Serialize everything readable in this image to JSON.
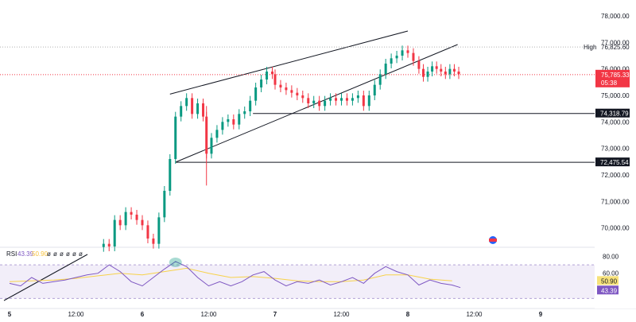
{
  "chart_data": [
    {
      "type": "candlestick",
      "price_axis": {
        "ticks": [
          "78,000.00",
          "77,000.00",
          "76,000.00",
          "75,000.00",
          "74,000.00",
          "73,000.00",
          "72,000.00",
          "71,000.00",
          "70,000.00"
        ],
        "range": [
          69300,
          78600
        ]
      },
      "time_axis": {
        "ticks": [
          "5",
          "12:00",
          "6",
          "12:00",
          "7",
          "12:00",
          "8",
          "12:00",
          "9"
        ],
        "range_hours": [
          0,
          96
        ]
      },
      "high": {
        "label": "High",
        "value": 76825.6,
        "text": "76,825.60"
      },
      "last_price": {
        "value": 75785.33,
        "text": "75,785.33",
        "countdown": "05:38"
      },
      "levels": [
        {
          "value": 74318.79,
          "text": "74,318.79"
        },
        {
          "value": 72475.54,
          "text": "72,475.54"
        }
      ],
      "wedge_upper": [
        [
          29,
          75050
        ],
        [
          72,
          77430
        ]
      ],
      "wedge_lower": [
        [
          30,
          72480
        ],
        [
          81,
          76920
        ]
      ],
      "colors": {
        "up": "#089981",
        "down": "#f23645",
        "last_price": "#f23645",
        "line": "#000000"
      },
      "candles_approx": [
        [
          17.0,
          69400
        ],
        [
          18.0,
          69300
        ],
        [
          19.0,
          70300
        ],
        [
          20.0,
          70100
        ],
        [
          21.0,
          70600
        ],
        [
          22.0,
          70500
        ],
        [
          23.0,
          70300
        ],
        [
          24.0,
          70100
        ],
        [
          25.0,
          69600
        ],
        [
          26.0,
          69400
        ],
        [
          27.0,
          70400
        ],
        [
          28.0,
          71400
        ],
        [
          29.0,
          72600
        ],
        [
          30.0,
          74200
        ],
        [
          31.0,
          74600
        ],
        [
          32.0,
          74900
        ],
        [
          33.0,
          74300
        ],
        [
          34.0,
          74700
        ],
        [
          35.0,
          74200
        ],
        [
          35.6,
          72800
        ],
        [
          36.5,
          73400
        ],
        [
          37.5,
          73700
        ],
        [
          38.5,
          74000
        ],
        [
          39.5,
          74100
        ],
        [
          40.5,
          73900
        ],
        [
          41.5,
          74300
        ],
        [
          42.5,
          74400
        ],
        [
          43.5,
          74800
        ],
        [
          44.5,
          75300
        ],
        [
          45.5,
          75600
        ],
        [
          46.5,
          75900
        ],
        [
          47.5,
          75800
        ],
        [
          48.0,
          75400
        ],
        [
          49.0,
          75300
        ],
        [
          50.0,
          75200
        ],
        [
          51.0,
          75100
        ],
        [
          52.0,
          75000
        ],
        [
          53.0,
          74900
        ],
        [
          54.0,
          74700
        ],
        [
          55.0,
          74800
        ],
        [
          56.0,
          74600
        ],
        [
          57.0,
          74800
        ],
        [
          58.0,
          74900
        ],
        [
          59.0,
          74800
        ],
        [
          60.0,
          74900
        ],
        [
          61.0,
          74800
        ],
        [
          62.0,
          74900
        ],
        [
          63.0,
          75000
        ],
        [
          64.0,
          74600
        ],
        [
          65.0,
          75000
        ],
        [
          66.0,
          75400
        ],
        [
          67.0,
          75800
        ],
        [
          68.0,
          76200
        ],
        [
          69.0,
          76400
        ],
        [
          70.0,
          76500
        ],
        [
          71.0,
          76700
        ],
        [
          72.0,
          76600
        ],
        [
          73.0,
          76300
        ],
        [
          74.0,
          76000
        ],
        [
          74.8,
          75700
        ],
        [
          75.6,
          75900
        ],
        [
          76.4,
          76100
        ],
        [
          77.2,
          76000
        ],
        [
          78.0,
          75900
        ],
        [
          78.8,
          75800
        ],
        [
          79.6,
          76000
        ],
        [
          80.4,
          75900
        ],
        [
          81.2,
          75800
        ]
      ]
    },
    {
      "type": "line",
      "indicator": "RSI",
      "label": "RSI",
      "values_text": [
        "43.39",
        "50.90"
      ],
      "flags": [
        "ø",
        "ø",
        "ø",
        "ø",
        "ø",
        "ø"
      ],
      "axis_ticks": [
        "80.00",
        "60.00",
        "40.00"
      ],
      "range": [
        20,
        90
      ],
      "band": [
        30,
        70
      ],
      "series": [
        {
          "value": 43.39,
          "text": "43.39",
          "color": "#7e57c2"
        },
        {
          "value": 50.9,
          "text": "50.90",
          "color": "#f7d24a"
        }
      ],
      "rsi_approx": [
        [
          0,
          48
        ],
        [
          2,
          45
        ],
        [
          4,
          55
        ],
        [
          6,
          48
        ],
        [
          8,
          50
        ],
        [
          10,
          52
        ],
        [
          12,
          55
        ],
        [
          14,
          58
        ],
        [
          16,
          60
        ],
        [
          18,
          70
        ],
        [
          20,
          62
        ],
        [
          22,
          50
        ],
        [
          24,
          45
        ],
        [
          26,
          55
        ],
        [
          28,
          65
        ],
        [
          30,
          74
        ],
        [
          32,
          68
        ],
        [
          34,
          55
        ],
        [
          36,
          45
        ],
        [
          38,
          50
        ],
        [
          40,
          45
        ],
        [
          42,
          50
        ],
        [
          44,
          58
        ],
        [
          46,
          62
        ],
        [
          48,
          52
        ],
        [
          50,
          45
        ],
        [
          52,
          50
        ],
        [
          54,
          48
        ],
        [
          56,
          52
        ],
        [
          58,
          46
        ],
        [
          60,
          50
        ],
        [
          62,
          55
        ],
        [
          64,
          48
        ],
        [
          66,
          60
        ],
        [
          68,
          68
        ],
        [
          70,
          62
        ],
        [
          72,
          58
        ],
        [
          74,
          46
        ],
        [
          76,
          52
        ],
        [
          78,
          48
        ],
        [
          80,
          46
        ],
        [
          81.5,
          43
        ]
      ],
      "signal_approx": [
        [
          0,
          50
        ],
        [
          4,
          51
        ],
        [
          8,
          52
        ],
        [
          12,
          54
        ],
        [
          16,
          57
        ],
        [
          20,
          60
        ],
        [
          24,
          58
        ],
        [
          28,
          62
        ],
        [
          32,
          66
        ],
        [
          36,
          60
        ],
        [
          40,
          55
        ],
        [
          44,
          56
        ],
        [
          48,
          54
        ],
        [
          52,
          51
        ],
        [
          56,
          50
        ],
        [
          60,
          50
        ],
        [
          64,
          52
        ],
        [
          68,
          58
        ],
        [
          72,
          58
        ],
        [
          76,
          53
        ],
        [
          80,
          50.9
        ]
      ]
    }
  ]
}
